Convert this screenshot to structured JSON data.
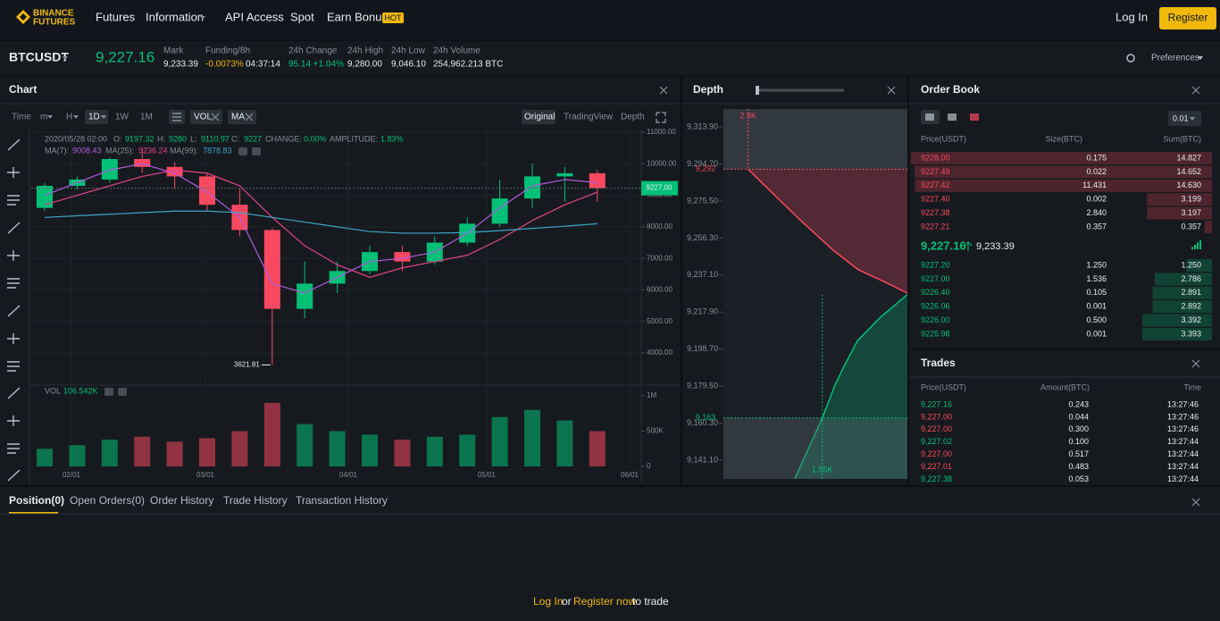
{
  "header": {
    "logo": [
      "BINANCE",
      "FUTURES"
    ],
    "nav": [
      "Futures",
      "Information",
      "API Access",
      "Spot",
      "Earn Bonus"
    ],
    "badge": "HOT",
    "login": "Log In",
    "register": "Register"
  },
  "ticker": {
    "symbol": "BTCUSDT",
    "last_price": "9,227.16",
    "stats": [
      {
        "label": "Mark",
        "value": "9,233.39"
      },
      {
        "label": "Funding/8h",
        "value": "-0.0073%",
        "countdown": "04:37:14"
      },
      {
        "label": "24h Change",
        "value": "95.14 +1.04%"
      },
      {
        "label": "24h High",
        "value": "9,280.00"
      },
      {
        "label": "24h Low",
        "value": "9,046.10"
      },
      {
        "label": "24h Volume",
        "value": "254,962.213 BTC"
      }
    ],
    "preferences": "Preferences"
  },
  "chart_panel": {
    "title": "Chart",
    "intervals": [
      "Time",
      "m",
      "H",
      "1D",
      "1W",
      "1M"
    ],
    "indicators": [
      "VOL",
      "MA"
    ],
    "views": [
      "Original",
      "TradingView",
      "Depth"
    ],
    "date": "2020/05/28 02:00",
    "ohlc": [
      {
        "label": "O:",
        "value": "9197.32"
      },
      {
        "label": "H:",
        "value": "9280"
      },
      {
        "label": "L:",
        "value": "9110.97"
      },
      {
        "label": "C:",
        "value": "9227"
      },
      {
        "label": "CHANGE:",
        "value": "0.00%"
      },
      {
        "label": "AMPLITUDE:",
        "value": "1.83%"
      }
    ]
  },
  "chart_data": [
    {
      "type": "candlestick",
      "categories": [
        null,
        null,
        null,
        null,
        null,
        null,
        null,
        null,
        null,
        null,
        null,
        null,
        null,
        null,
        null,
        null,
        null,
        null
      ],
      "open": [
        8600,
        9300,
        9500,
        10150,
        9900,
        9600,
        8700,
        7900,
        5400,
        6200,
        6600,
        7200,
        6900,
        7500,
        8100,
        8900,
        9600,
        9700
      ],
      "high": [
        9400,
        9600,
        10200,
        10500,
        10050,
        9700,
        9200,
        7950,
        6900,
        6900,
        7400,
        7400,
        7700,
        8300,
        9500,
        10000,
        9900,
        9800
      ],
      "low": [
        8500,
        9200,
        9400,
        9700,
        9200,
        8500,
        7700,
        3621.81,
        5100,
        5900,
        6500,
        6600,
        6800,
        7400,
        8000,
        8600,
        8800,
        8800
      ],
      "close": [
        9300,
        9500,
        10150,
        9900,
        9600,
        8700,
        7900,
        5400,
        6200,
        6600,
        7200,
        6900,
        7500,
        8100,
        8900,
        9600,
        9700,
        9227
      ],
      "up_color": "#02c076",
      "down_color": "#f84960",
      "series": [
        {
          "name": "MA(7):",
          "color": "#b05ce0",
          "last": "9008.43",
          "values": [
            9000,
            9400,
            9800,
            10000,
            9700,
            9100,
            8300,
            6200,
            5900,
            6400,
            6900,
            7000,
            7200,
            7800,
            8600,
            9300,
            9500,
            9400
          ]
        },
        {
          "name": "MA(25):",
          "color": "#e0448e",
          "last": "9236.24",
          "values": [
            8700,
            9000,
            9300,
            9600,
            9800,
            9700,
            9300,
            8300,
            7400,
            6800,
            6400,
            6700,
            6900,
            7100,
            7600,
            8200,
            8700,
            9100
          ]
        },
        {
          "name": "MA(99):",
          "color": "#3fa4c8",
          "last": "7878.83",
          "values": [
            8300,
            8350,
            8400,
            8450,
            8500,
            8500,
            8450,
            8300,
            8150,
            8000,
            7850,
            7800,
            7800,
            7820,
            7880,
            7950,
            8020,
            8100
          ]
        }
      ],
      "ylim": [
        3010,
        11085
      ],
      "yticks": [
        {
          "value": 11000,
          "label": "11000.00"
        },
        {
          "value": 10000,
          "label": "10000.00"
        },
        {
          "value": 9000,
          "label": "9000.00"
        },
        {
          "value": 8000,
          "label": "8000.00"
        },
        {
          "value": 7000,
          "label": "7000.00"
        },
        {
          "value": 6000,
          "label": "6000.00"
        },
        {
          "value": 5000,
          "label": "5000.00"
        },
        {
          "value": 4000,
          "label": "4000.00"
        }
      ],
      "last_price": {
        "value": 9227,
        "label": "9227.00"
      },
      "low_label": "3621.81",
      "x_labels": [
        "02/01",
        "03/01",
        "04/01",
        "05/01",
        "06/01"
      ],
      "volume_label": "VOL",
      "volume_value": "106.542K",
      "volume": [
        250000,
        300000,
        380000,
        420000,
        350000,
        400000,
        500000,
        900000,
        600000,
        500000,
        450000,
        380000,
        420000,
        450000,
        700000,
        800000,
        650000,
        500000
      ],
      "volume_ylim": [
        0,
        1139000
      ],
      "volume_yticks": [
        {
          "value": 0,
          "label": "0"
        },
        {
          "value": 500000,
          "label": "500K"
        },
        {
          "value": 1000000,
          "label": "1M"
        }
      ]
    },
    {
      "type": "depth",
      "title": "Depth",
      "asks": {
        "color": "#f84960",
        "price": [
          9227.7,
          9232,
          9240,
          9250,
          9264,
          9278,
          9292
        ],
        "amount": [
          0,
          300,
          900,
          1350,
          1890,
          2400,
          2900
        ]
      },
      "bids": {
        "color": "#02c076",
        "price": [
          9227,
          9215,
          9203,
          9190,
          9180,
          9163,
          9131.5
        ],
        "amount": [
          0,
          500,
          910,
          1150,
          1320,
          1550,
          2050
        ]
      },
      "xlim": [
        3350,
        0
      ],
      "ylim": [
        9131.4,
        9323.2
      ],
      "yticks": [
        {
          "value": 9313.9,
          "label": "9,313.90"
        },
        {
          "value": 9294.7,
          "label": "9,294.70"
        },
        {
          "value": 9275.5,
          "label": "9,275.50"
        },
        {
          "value": 9256.3,
          "label": "9,256.30"
        },
        {
          "value": 9237.1,
          "label": "9,237.10"
        },
        {
          "value": 9217.9,
          "label": "9,217.90"
        },
        {
          "value": 9198.7,
          "label": "9,198.70"
        },
        {
          "value": 9179.5,
          "label": "9,179.50"
        },
        {
          "value": 9160.3,
          "label": "9,160.30"
        },
        {
          "value": 9141.1,
          "label": "9,141.10"
        }
      ],
      "ask_price_marker": {
        "value": 9292,
        "label": "9,292"
      },
      "ask_amount_marker": {
        "value": 2900,
        "label": "2.9K"
      },
      "bid_price_marker": {
        "value": 9163,
        "label": "9,163"
      },
      "bid_amount_marker": {
        "value": 1550,
        "label": "1.55K"
      }
    }
  ],
  "order_book": {
    "title": "Order Book",
    "precision": "0.01",
    "headers": [
      "Price(USDT)",
      "Size(BTC)",
      "Sum(BTC)"
    ],
    "asks": [
      [
        "9228.00",
        "0.175",
        "14.827"
      ],
      [
        "9227.49",
        "0.022",
        "14.652"
      ],
      [
        "9227.42",
        "11.431",
        "14.630"
      ],
      [
        "9227.40",
        "0.002",
        "3.199"
      ],
      [
        "9227.38",
        "2.840",
        "3.197"
      ],
      [
        "9227.21",
        "0.357",
        "0.357"
      ]
    ],
    "last": "9,227.16",
    "mark": "9,233.39",
    "bids": [
      [
        "9227.20",
        "1.250",
        "1.250"
      ],
      [
        "9227.00",
        "1.536",
        "2.786"
      ],
      [
        "9226.40",
        "0.105",
        "2.891"
      ],
      [
        "9226.06",
        "0.001",
        "2.892"
      ],
      [
        "9226.00",
        "0.500",
        "3.392"
      ],
      [
        "9225.98",
        "0.001",
        "3.393"
      ]
    ]
  },
  "trades": {
    "title": "Trades",
    "headers": [
      "Price(USDT)",
      "Amount(BTC)",
      "Time"
    ],
    "rows": [
      [
        "9,227.16",
        "0.243",
        "13:27:46"
      ],
      [
        "9,227.00",
        "0.044",
        "13:27:46"
      ],
      [
        "9,227.00",
        "0.300",
        "13:27:46"
      ],
      [
        "9,227.02",
        "0.100",
        "13:27:44"
      ],
      [
        "9,227.00",
        "0.517",
        "13:27:44"
      ],
      [
        "9,227.01",
        "0.483",
        "13:27:44"
      ],
      [
        "9,227.38",
        "0.053",
        "13:27:44"
      ]
    ],
    "row_colors": [
      "#02c076",
      "#f84960",
      "#f84960",
      "#02c076",
      "#f84960",
      "#f84960",
      "#02c076"
    ]
  },
  "bottom": {
    "tabs": [
      "Position(0)",
      "Open Orders(0)",
      "Order History",
      "Trade History",
      "Transaction History"
    ],
    "login": "Log In",
    "or": "or",
    "register": "Register now",
    "suffix": "to trade"
  }
}
